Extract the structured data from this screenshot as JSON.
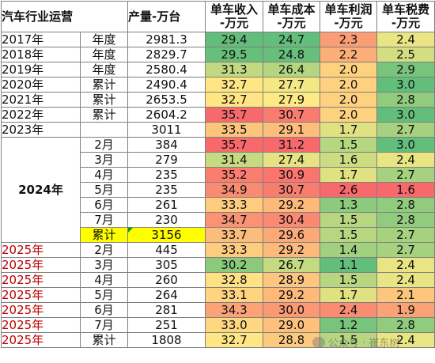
{
  "header": {
    "title": "汽车行业运营",
    "production": "产量-万台",
    "metrics": [
      [
        "单车收入",
        "-万元"
      ],
      [
        "单车成本",
        "-万元"
      ],
      [
        "单车利润",
        "-万元"
      ],
      [
        "单车税费",
        "-万元"
      ]
    ]
  },
  "group_2024_label": "2024年",
  "rows": [
    {
      "year": "2017年",
      "period": "年度",
      "production": "2981.3",
      "revenue": "29.4",
      "cost": "24.7",
      "profit": "2.3",
      "tax": "2.4"
    },
    {
      "year": "2018年",
      "period": "年度",
      "production": "2829.7",
      "revenue": "29.5",
      "cost": "24.8",
      "profit": "2.2",
      "tax": "2.5"
    },
    {
      "year": "2019年",
      "period": "年度",
      "production": "2580.4",
      "revenue": "31.3",
      "cost": "26.4",
      "profit": "2.0",
      "tax": "2.9"
    },
    {
      "year": "2020年",
      "period": "累计",
      "production": "2490.4",
      "revenue": "32.7",
      "cost": "27.7",
      "profit": "2.0",
      "tax": "3.0"
    },
    {
      "year": "2021年",
      "period": "累计",
      "production": "2653.5",
      "revenue": "32.7",
      "cost": "27.9",
      "profit": "2.0",
      "tax": "2.8"
    },
    {
      "year": "2022年",
      "period": "累计",
      "production": "2604.2",
      "revenue": "35.7",
      "cost": "30.7",
      "profit": "2.0",
      "tax": "3.0"
    },
    {
      "year": "2023年",
      "period": "",
      "production": "3011",
      "revenue": "33.5",
      "cost": "29.1",
      "profit": "1.7",
      "tax": "2.7"
    },
    {
      "year": "",
      "period": "2月",
      "production": "384",
      "revenue": "35.7",
      "cost": "31.2",
      "profit": "1.5",
      "tax": "3.0"
    },
    {
      "year": "",
      "period": "3月",
      "production": "279",
      "revenue": "31.4",
      "cost": "27.4",
      "profit": "1.6",
      "tax": "2.4"
    },
    {
      "year": "",
      "period": "4月",
      "production": "235",
      "revenue": "35.2",
      "cost": "30.9",
      "profit": "1.7",
      "tax": "2.7"
    },
    {
      "year": "",
      "period": "5月",
      "production": "235",
      "revenue": "34.9",
      "cost": "30.7",
      "profit": "2.6",
      "tax": "1.6"
    },
    {
      "year": "",
      "period": "6月",
      "production": "261",
      "revenue": "33.3",
      "cost": "29.2",
      "profit": "1.3",
      "tax": "2.8"
    },
    {
      "year": "",
      "period": "7月",
      "production": "230",
      "revenue": "34.7",
      "cost": "30.4",
      "profit": "1.5",
      "tax": "2.8"
    },
    {
      "year": "",
      "period": "累计",
      "production": "3156",
      "revenue": "33.7",
      "cost": "29.6",
      "profit": "1.5",
      "tax": "2.7"
    },
    {
      "year": "2025年",
      "period": "2月",
      "production": "445",
      "revenue": "33.3",
      "cost": "29.2",
      "profit": "1.4",
      "tax": "2.7"
    },
    {
      "year": "2025年",
      "period": "3月",
      "production": "305",
      "revenue": "30.2",
      "cost": "26.7",
      "profit": "1.1",
      "tax": "2.4"
    },
    {
      "year": "2025年",
      "period": "4月",
      "production": "260",
      "revenue": "32.8",
      "cost": "28.9",
      "profit": "1.5",
      "tax": "2.4"
    },
    {
      "year": "2025年",
      "period": "5月",
      "production": "264",
      "revenue": "33.1",
      "cost": "29.2",
      "profit": "1.7",
      "tax": "2.1"
    },
    {
      "year": "2025年",
      "period": "6月",
      "production": "281",
      "revenue": "34.3",
      "cost": "30.0",
      "profit": "2.4",
      "tax": "1.9"
    },
    {
      "year": "2025年",
      "period": "7月",
      "production": "251",
      "revenue": "33.0",
      "cost": "29.0",
      "profit": "1.2",
      "tax": "2.8"
    },
    {
      "year": "2025年",
      "period": "累计",
      "production": "1808",
      "revenue": "32.7",
      "cost": "28.8",
      "profit": "1.5",
      "tax": "2.4"
    }
  ],
  "colors": {
    "green": "#63be7b",
    "yellow": "#ffeb84",
    "red": "#f8696b",
    "highlight": "#ffff00",
    "year_red": "#c00000"
  },
  "watermark": "公众号 · 崔东树"
}
